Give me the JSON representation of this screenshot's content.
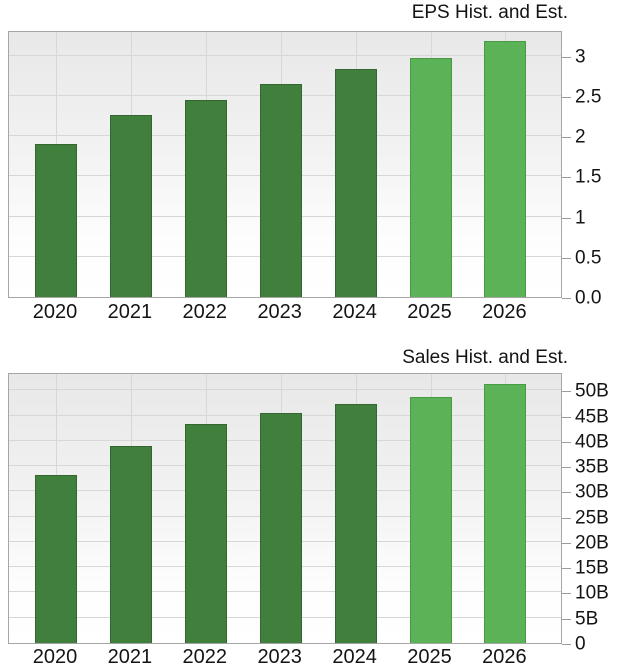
{
  "colors": {
    "historical": "#41803c",
    "historical_border": "#34672f",
    "estimate": "#5cb357",
    "estimate_border": "#4a9a45",
    "grid": "#d7d7d7",
    "plot_border": "#a6a6a6",
    "text": "#141414",
    "plot_bg_top": "#e8e8e8",
    "plot_bg_bottom": "#ffffff"
  },
  "chart_data": [
    {
      "type": "bar",
      "title": "EPS Hist. and Est.",
      "categories": [
        "2020",
        "2021",
        "2022",
        "2023",
        "2024",
        "2025",
        "2026"
      ],
      "values": [
        1.9,
        2.26,
        2.45,
        2.65,
        2.84,
        2.97,
        3.19
      ],
      "series_kind": [
        "historical",
        "historical",
        "historical",
        "historical",
        "historical",
        "estimate",
        "estimate"
      ],
      "xlabel": "",
      "ylabel": "",
      "ylim": [
        0,
        3.32
      ],
      "axis_side": "right",
      "grid": true,
      "legend": "none",
      "y_ticks": [
        {
          "v": 0,
          "label": "0.0"
        },
        {
          "v": 0.5,
          "label": "0.5"
        },
        {
          "v": 1,
          "label": "1"
        },
        {
          "v": 1.5,
          "label": "1.5"
        },
        {
          "v": 2,
          "label": "2"
        },
        {
          "v": 2.5,
          "label": "2.5"
        },
        {
          "v": 3,
          "label": "3"
        }
      ]
    },
    {
      "type": "bar",
      "title": "Sales Hist. and Est.",
      "categories": [
        "2020",
        "2021",
        "2022",
        "2023",
        "2024",
        "2025",
        "2026"
      ],
      "values": [
        33.2,
        38.9,
        43.4,
        45.5,
        47.2,
        48.7,
        51.3
      ],
      "values_unit": "B",
      "series_kind": [
        "historical",
        "historical",
        "historical",
        "historical",
        "historical",
        "estimate",
        "estimate"
      ],
      "xlabel": "",
      "ylabel": "",
      "ylim": [
        0,
        53.6
      ],
      "axis_side": "right",
      "grid": true,
      "legend": "none",
      "y_ticks": [
        {
          "v": 0,
          "label": "0"
        },
        {
          "v": 5,
          "label": "5B"
        },
        {
          "v": 10,
          "label": "10B"
        },
        {
          "v": 15,
          "label": "15B"
        },
        {
          "v": 20,
          "label": "20B"
        },
        {
          "v": 25,
          "label": "25B"
        },
        {
          "v": 30,
          "label": "30B"
        },
        {
          "v": 35,
          "label": "35B"
        },
        {
          "v": 40,
          "label": "40B"
        },
        {
          "v": 45,
          "label": "45B"
        },
        {
          "v": 50,
          "label": "50B"
        }
      ]
    }
  ]
}
